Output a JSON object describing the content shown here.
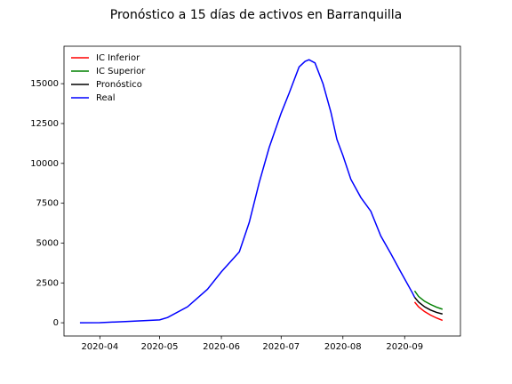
{
  "chart_data": {
    "type": "line",
    "title": "Pronóstico a 15 días de activos en Barranquilla",
    "xlim": [
      "2020-03-14",
      "2020-09-29"
    ],
    "xticks": [
      {
        "value": "2020-04-01",
        "label": "2020-04"
      },
      {
        "value": "2020-05-01",
        "label": "2020-05"
      },
      {
        "value": "2020-06-01",
        "label": "2020-06"
      },
      {
        "value": "2020-07-01",
        "label": "2020-07"
      },
      {
        "value": "2020-08-01",
        "label": "2020-08"
      },
      {
        "value": "2020-09-01",
        "label": "2020-09"
      }
    ],
    "ylim": [
      -830,
      17350
    ],
    "yticks": [
      0,
      2500,
      5000,
      7500,
      10000,
      12500,
      15000
    ],
    "legend": "upper left",
    "series": [
      {
        "name": "IC Inferior",
        "color": "#ff0000",
        "x": [
          "2020-09-06",
          "2020-09-08",
          "2020-09-11",
          "2020-09-14",
          "2020-09-17",
          "2020-09-20"
        ],
        "values": [
          1300,
          1000,
          700,
          480,
          300,
          150
        ]
      },
      {
        "name": "IC Superior",
        "color": "#008000",
        "x": [
          "2020-09-06",
          "2020-09-08",
          "2020-09-11",
          "2020-09-14",
          "2020-09-17",
          "2020-09-20"
        ],
        "values": [
          2000,
          1650,
          1350,
          1150,
          980,
          850
        ]
      },
      {
        "name": "Pronóstico",
        "color": "#000000",
        "x": [
          "2020-09-06",
          "2020-09-08",
          "2020-09-11",
          "2020-09-14",
          "2020-09-17",
          "2020-09-20"
        ],
        "values": [
          1600,
          1300,
          1000,
          800,
          650,
          550
        ]
      },
      {
        "name": "Real",
        "color": "#0000ff",
        "x": [
          "2020-03-22",
          "2020-04-01",
          "2020-04-15",
          "2020-05-01",
          "2020-05-05",
          "2020-05-15",
          "2020-05-25",
          "2020-06-01",
          "2020-06-10",
          "2020-06-15",
          "2020-06-20",
          "2020-06-25",
          "2020-07-01",
          "2020-07-05",
          "2020-07-10",
          "2020-07-13",
          "2020-07-15",
          "2020-07-18",
          "2020-07-22",
          "2020-07-26",
          "2020-07-29",
          "2020-08-01",
          "2020-08-05",
          "2020-08-10",
          "2020-08-15",
          "2020-08-20",
          "2020-08-25",
          "2020-08-30",
          "2020-09-05",
          "2020-09-06"
        ],
        "values": [
          0,
          10,
          80,
          180,
          330,
          1000,
          2100,
          3200,
          4450,
          6300,
          8800,
          11000,
          13150,
          14400,
          16050,
          16400,
          16500,
          16300,
          15000,
          13200,
          11500,
          10500,
          9000,
          7860,
          7000,
          5450,
          4350,
          3200,
          1850,
          1600
        ]
      }
    ]
  }
}
